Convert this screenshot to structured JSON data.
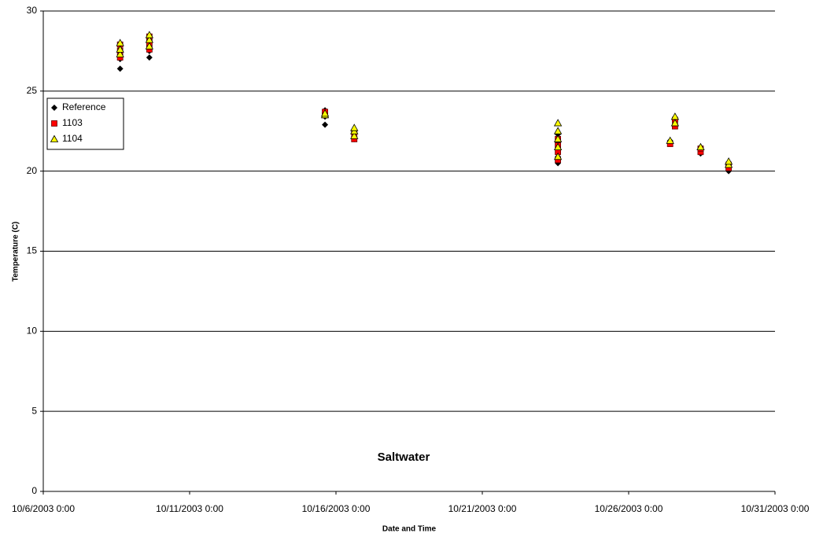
{
  "chart_data": {
    "type": "scatter",
    "title": "Saltwater",
    "xlabel": "Date and Time",
    "ylabel": "Temperature (C)",
    "xlim": [
      "10/6/2003 0:00",
      "10/31/2003 0:00"
    ],
    "xticks": [
      "10/6/2003 0:00",
      "10/11/2003 0:00",
      "10/16/2003 0:00",
      "10/21/2003 0:00",
      "10/26/2003 0:00",
      "10/31/2003 0:00"
    ],
    "ylim": [
      0,
      30
    ],
    "yticks": [
      0,
      5,
      10,
      15,
      20,
      25,
      30
    ],
    "grid": true,
    "legend": "upper left",
    "series": [
      {
        "name": "Reference",
        "color": "#000000",
        "marker": "diamond",
        "x": [
          "10/8/2003 15:00",
          "10/8/2003 15:00",
          "10/8/2003 15:00",
          "10/8/2003 15:00",
          "10/8/2003 15:00",
          "10/9/2003 15:00",
          "10/9/2003 15:00",
          "10/9/2003 15:00",
          "10/9/2003 15:00",
          "10/9/2003 15:00",
          "10/15/2003 15:00",
          "10/15/2003 15:00",
          "10/15/2003 15:00",
          "10/15/2003 15:00",
          "10/16/2003 15:00",
          "10/16/2003 15:00",
          "10/16/2003 15:00",
          "10/23/2003 14:00",
          "10/23/2003 14:00",
          "10/23/2003 14:00",
          "10/23/2003 14:00",
          "10/23/2003 14:00",
          "10/27/2003 10:00",
          "10/27/2003 10:00",
          "10/27/2003 14:00",
          "10/27/2003 14:00",
          "10/27/2003 14:00",
          "10/28/2003 11:00",
          "10/28/2003 11:00",
          "10/28/2003 11:00",
          "10/29/2003 10:00",
          "10/29/2003 10:00",
          "10/29/2003 10:00"
        ],
        "values": [
          26.4,
          27.0,
          27.3,
          27.5,
          27.8,
          27.1,
          27.5,
          27.8,
          28.2,
          28.4,
          22.9,
          23.4,
          23.6,
          23.8,
          22.0,
          22.3,
          22.6,
          20.5,
          20.9,
          21.4,
          21.8,
          22.3,
          21.7,
          21.9,
          22.9,
          23.1,
          23.3,
          21.1,
          21.3,
          21.5,
          20.0,
          20.2,
          20.5
        ]
      },
      {
        "name": "1103",
        "color": "#ff0000",
        "marker": "square",
        "x": [
          "10/8/2003 15:00",
          "10/8/2003 15:00",
          "10/8/2003 15:00",
          "10/9/2003 15:00",
          "10/9/2003 15:00",
          "10/9/2003 15:00",
          "10/15/2003 15:00",
          "10/15/2003 15:00",
          "10/16/2003 15:00",
          "10/16/2003 15:00",
          "10/23/2003 14:00",
          "10/23/2003 14:00",
          "10/23/2003 14:00",
          "10/23/2003 14:00",
          "10/27/2003 10:00",
          "10/27/2003 14:00",
          "10/27/2003 14:00",
          "10/28/2003 11:00",
          "10/28/2003 11:00",
          "10/29/2003 10:00",
          "10/29/2003 10:00"
        ],
        "values": [
          27.1,
          27.5,
          27.9,
          27.6,
          28.0,
          28.4,
          23.5,
          23.7,
          22.0,
          22.4,
          20.7,
          21.2,
          21.6,
          22.0,
          21.7,
          22.8,
          23.2,
          21.2,
          21.4,
          20.2,
          20.4
        ]
      },
      {
        "name": "1104",
        "color": "#ffff00",
        "marker": "triangle",
        "x": [
          "10/8/2003 15:00",
          "10/8/2003 15:00",
          "10/8/2003 15:00",
          "10/9/2003 15:00",
          "10/9/2003 15:00",
          "10/9/2003 15:00",
          "10/15/2003 15:00",
          "10/15/2003 15:00",
          "10/16/2003 15:00",
          "10/16/2003 15:00",
          "10/16/2003 15:00",
          "10/23/2003 14:00",
          "10/23/2003 14:00",
          "10/23/2003 14:00",
          "10/23/2003 14:00",
          "10/23/2003 14:00",
          "10/27/2003 10:00",
          "10/27/2003 14:00",
          "10/27/2003 14:00",
          "10/28/2003 11:00",
          "10/29/2003 10:00",
          "10/29/2003 10:00"
        ],
        "values": [
          27.3,
          27.6,
          28.0,
          27.8,
          28.2,
          28.5,
          23.5,
          23.6,
          22.2,
          22.5,
          22.7,
          20.9,
          21.5,
          22.0,
          22.5,
          23.0,
          21.9,
          23.0,
          23.4,
          21.5,
          20.4,
          20.6
        ]
      }
    ]
  }
}
